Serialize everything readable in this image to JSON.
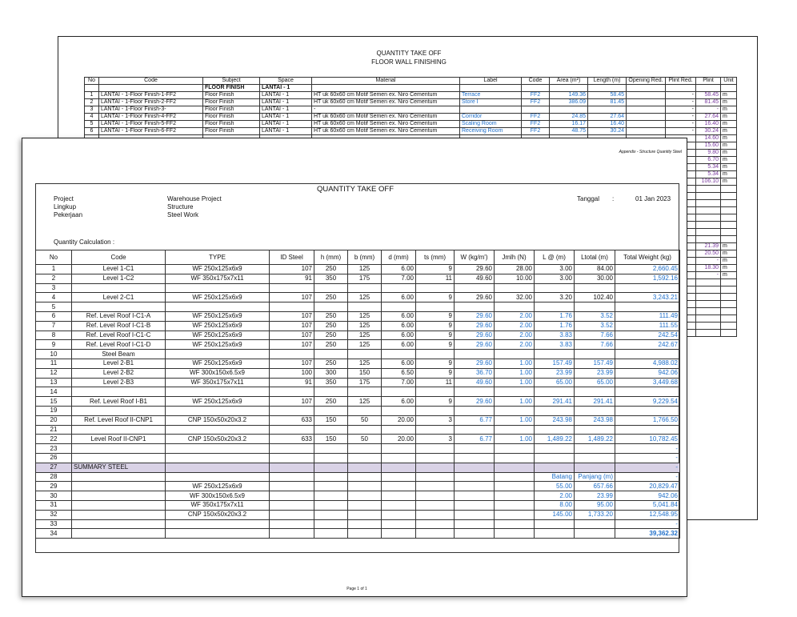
{
  "back_sheet": {
    "title": "QUANTITY TAKE OFF",
    "subtitle": "FLOOR WALL FINISHING",
    "header": [
      "No",
      "Code",
      "Subject",
      "Space",
      "Material",
      "Label",
      "Code",
      "Area (m²)",
      "Length (m)",
      "Opening Red.",
      "Plint Red.",
      "Plint",
      "Unit"
    ],
    "group": [
      "FLOOR FINISH",
      "LANTAI - 1"
    ],
    "rows": [
      [
        "1",
        "LANTAI - 1-Floor Finish-1-FF2",
        "Floor Finish",
        "LANTAI - 1",
        "HT uk 60x60 cm Motif Semen ex. Niro Cementum",
        "Terrace",
        "FF2",
        "149.36",
        "58.45",
        null,
        "-",
        "58.45",
        "m"
      ],
      [
        "2",
        "LANTAI - 1-Floor Finish-2-FF2",
        "Floor Finish",
        "LANTAI - 1",
        "HT uk 60x60 cm Motif Semen ex. Niro Cementum",
        "Store I",
        "FF2",
        "386.09",
        "81.45",
        null,
        "-",
        "81.45",
        "m"
      ],
      [
        "3",
        "LANTAI - 1-Floor Finish-3-",
        "Floor Finish",
        "LANTAI - 1",
        "-",
        null,
        null,
        null,
        null,
        null,
        "-",
        "-",
        "m"
      ],
      [
        "4",
        "LANTAI - 1-Floor Finish-4-FF2",
        "Floor Finish",
        "LANTAI - 1",
        "HT uk 60x60 cm Motif Semen ex. Niro Cementum",
        "Corridor",
        "FF2",
        "24.85",
        "27.64",
        null,
        "-",
        "27.64",
        "m"
      ],
      [
        "5",
        "LANTAI - 1-Floor Finish-5-FF2",
        "Floor Finish",
        "LANTAI - 1",
        "HT uk 60x60 cm Motif Semen ex. Niro Cementum",
        "Scaling Room",
        "FF2",
        "16.17",
        "16.40",
        null,
        "-",
        "16.40",
        "m"
      ],
      [
        "6",
        "LANTAI - 1-Floor Finish-6-FF2",
        "Floor Finish",
        "LANTAI - 1",
        "HT uk 60x60 cm Motif Semen ex. Niro Cementum",
        "Receiving Room",
        "FF2",
        "48.75",
        "30.24",
        null,
        "-",
        "30.24",
        "m"
      ]
    ],
    "tail": [
      [
        "14.60",
        "m"
      ],
      [
        "15.60",
        "m"
      ],
      [
        "9.80",
        "m"
      ],
      [
        "6.70",
        "m"
      ],
      [
        "5.34",
        "m"
      ],
      [
        "5.34",
        "m"
      ],
      [
        "106.10",
        "m"
      ],
      null,
      null,
      null,
      null,
      null,
      null,
      null,
      null,
      [
        "21.39",
        "m"
      ],
      [
        "20.50",
        "m"
      ],
      [
        "-",
        "m"
      ],
      [
        "18.30",
        "m"
      ],
      [
        "-",
        "m"
      ],
      null,
      null,
      null,
      null,
      null,
      null,
      null,
      null
    ]
  },
  "front_sheet": {
    "appendix": "Appendix - Structure Quantity Steel",
    "title": "QUANTITY TAKE OFF",
    "info": [
      [
        "Project",
        "Warehouse Project"
      ],
      [
        "Lingkup",
        "Structure"
      ],
      [
        "Pekerjaan",
        "Steel Work"
      ]
    ],
    "date_label": "Tanggal",
    "date_sep": ":",
    "date": "01 Jan 2023",
    "section": "Quantity Calculation :",
    "header": [
      "No",
      "Code",
      "TYPE",
      "ID Steel",
      "h (mm)",
      "b (mm)",
      "d (mm)",
      "ts (mm)",
      "W (kg/m')",
      "Jmlh (N)",
      "L @ (m)",
      "Ltotal (m)",
      "Total Weight (kg)"
    ],
    "rows": [
      [
        "1",
        "Level 1-C1",
        "WF 250x125x6x9",
        "107",
        "250",
        "125",
        "6.00",
        "9",
        "29.60",
        "28.00",
        "3.00",
        "84.00",
        "2,660.45"
      ],
      [
        "2",
        "Level 1-C2",
        "WF 350x175x7x11",
        "91",
        "350",
        "175",
        "7.00",
        "11",
        "49.60",
        "10.00",
        "3.00",
        "30.00",
        "1,592.16"
      ],
      [
        "3",
        null,
        null,
        null,
        null,
        null,
        null,
        null,
        null,
        null,
        null,
        null,
        null
      ],
      [
        "4",
        "Level 2-C1",
        "WF 250x125x6x9",
        "107",
        "250",
        "125",
        "6.00",
        "9",
        "29.60",
        "32.00",
        "3.20",
        "102.40",
        "3,243.21"
      ],
      [
        "5",
        null,
        null,
        null,
        null,
        null,
        null,
        null,
        null,
        null,
        null,
        null,
        null
      ],
      [
        "6",
        "Ref. Level Roof I-C1-A",
        "WF 250x125x6x9",
        "107",
        "250",
        "125",
        "6.00",
        "9",
        "29.60",
        "2.00",
        "1.76",
        "3.52",
        "111.49"
      ],
      [
        "7",
        "Ref. Level Roof I-C1-B",
        "WF 250x125x6x9",
        "107",
        "250",
        "125",
        "6.00",
        "9",
        "29.60",
        "2.00",
        "1.76",
        "3.52",
        "111.55"
      ],
      [
        "8",
        "Ref. Level Roof I-C1-C",
        "WF 250x125x6x9",
        "107",
        "250",
        "125",
        "6.00",
        "9",
        "29.60",
        "2.00",
        "3.83",
        "7.66",
        "242.54"
      ],
      [
        "9",
        "Ref. Level Roof I-C1-D",
        "WF 250x125x6x9",
        "107",
        "250",
        "125",
        "6.00",
        "9",
        "29.60",
        "2.00",
        "3.83",
        "7.66",
        "242.67"
      ],
      [
        "10",
        "Steel Beam",
        null,
        null,
        null,
        null,
        null,
        null,
        null,
        null,
        null,
        null,
        null
      ],
      [
        "11",
        "Level 2-B1",
        "WF 250x125x6x9",
        "107",
        "250",
        "125",
        "6.00",
        "9",
        "29.60",
        "1.00",
        "157.49",
        "157.49",
        "4,988.02"
      ],
      [
        "12",
        "Level 2-B2",
        "WF 300x150x6.5x9",
        "100",
        "300",
        "150",
        "6.50",
        "9",
        "36.70",
        "1.00",
        "23.99",
        "23.99",
        "942.06"
      ],
      [
        "13",
        "Level 2-B3",
        "WF 350x175x7x11",
        "91",
        "350",
        "175",
        "7.00",
        "11",
        "49.60",
        "1.00",
        "65.00",
        "65.00",
        "3,449.68"
      ],
      [
        "14",
        null,
        null,
        null,
        null,
        null,
        null,
        null,
        null,
        null,
        null,
        null,
        null
      ],
      [
        "15",
        "Ref. Level Roof I-B1",
        "WF 250x125x6x9",
        "107",
        "250",
        "125",
        "6.00",
        "9",
        "29.60",
        "1.00",
        "291.41",
        "291.41",
        "9,229.54"
      ],
      [
        "19",
        null,
        null,
        null,
        null,
        null,
        null,
        null,
        null,
        null,
        null,
        null,
        null
      ],
      [
        "20",
        "Ref. Level Roof II-CNP1",
        "CNP 150x50x20x3.2",
        "633",
        "150",
        "50",
        "20.00",
        "3",
        "6.77",
        "1.00",
        "243.98",
        "243.98",
        "1,766.50"
      ],
      [
        "21",
        null,
        null,
        null,
        null,
        null,
        null,
        null,
        null,
        null,
        null,
        null,
        null
      ],
      [
        "22",
        "Level Roof II-CNP1",
        "CNP 150x50x20x3.2",
        "633",
        "150",
        "50",
        "20.00",
        "3",
        "6.77",
        "1.00",
        "1,489.22",
        "1,489.22",
        "10,782.45"
      ],
      [
        "23",
        null,
        null,
        null,
        null,
        null,
        null,
        null,
        null,
        null,
        null,
        null,
        "-"
      ],
      [
        "26",
        null,
        null,
        null,
        null,
        null,
        null,
        null,
        null,
        null,
        null,
        null,
        "-"
      ],
      [
        "27",
        "SUMMARY STEEL",
        null,
        null,
        null,
        null,
        null,
        null,
        null,
        null,
        null,
        null,
        "-"
      ],
      [
        "28",
        null,
        null,
        null,
        null,
        null,
        null,
        null,
        null,
        null,
        "Batang",
        "Panjang (m)",
        "-"
      ],
      [
        "29",
        null,
        "WF 250x125x6x9",
        null,
        null,
        null,
        null,
        null,
        null,
        null,
        "55.00",
        "657.66",
        "20,829.47"
      ],
      [
        "30",
        null,
        "WF 300x150x6.5x9",
        null,
        null,
        null,
        null,
        null,
        null,
        null,
        "2.00",
        "23.99",
        "942.06"
      ],
      [
        "31",
        null,
        "WF 350x175x7x11",
        null,
        null,
        null,
        null,
        null,
        null,
        null,
        "8.00",
        "95.00",
        "5,041.84"
      ],
      [
        "32",
        null,
        "CNP 150x50x20x3.2",
        null,
        null,
        null,
        null,
        null,
        null,
        null,
        "145.00",
        "1,733.20",
        "12,548.95"
      ],
      [
        "33",
        null,
        null,
        null,
        null,
        null,
        null,
        null,
        null,
        null,
        null,
        null,
        "-"
      ],
      [
        "34",
        null,
        null,
        null,
        null,
        null,
        null,
        null,
        null,
        null,
        null,
        null,
        "39,362.32"
      ]
    ],
    "footer": "Page 1 of 1"
  }
}
